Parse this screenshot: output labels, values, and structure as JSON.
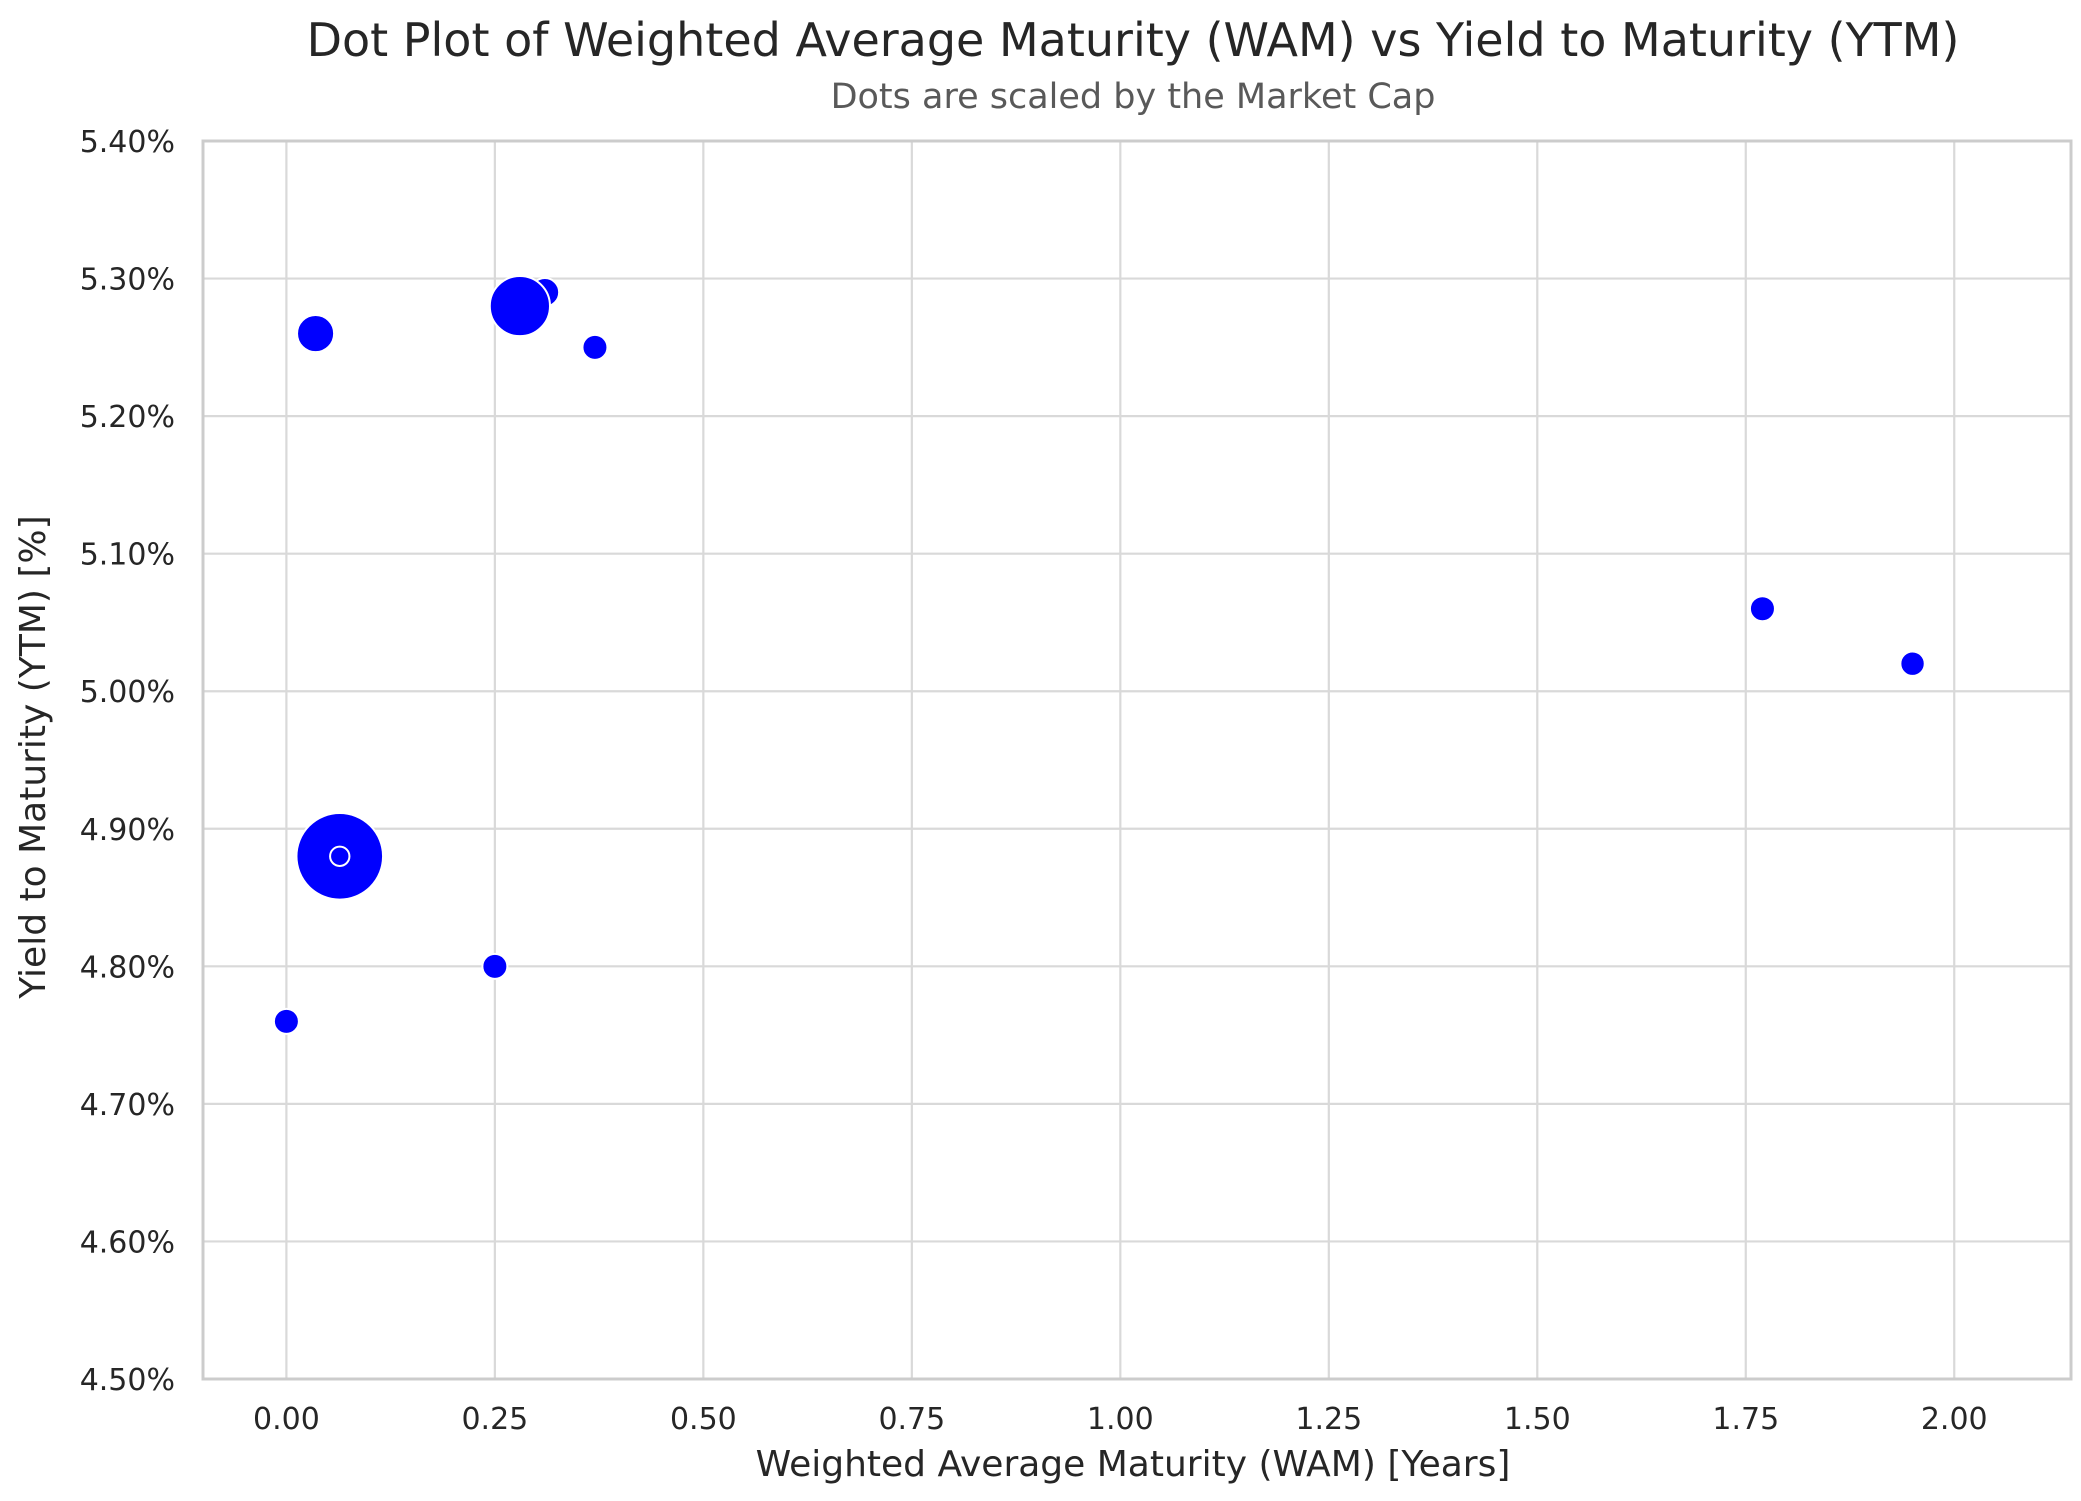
{
  "chart_data": {
    "type": "scatter",
    "title": "Dot Plot of Weighted Average Maturity (WAM) vs Yield to Maturity (YTM)",
    "subtitle": "Dots are scaled by the Market Cap",
    "xlabel": "Weighted Average Maturity (WAM) [Years]",
    "ylabel": "Yield to Maturity (YTM) [%]",
    "xlim": [
      -0.1,
      2.14
    ],
    "ylim": [
      4.5,
      5.4
    ],
    "xticks": [
      0.0,
      0.25,
      0.5,
      0.75,
      1.0,
      1.25,
      1.5,
      1.75,
      2.0
    ],
    "xtick_labels": [
      "0.00",
      "0.25",
      "0.50",
      "0.75",
      "1.00",
      "1.25",
      "1.50",
      "1.75",
      "2.00"
    ],
    "yticks": [
      4.5,
      4.6,
      4.7,
      4.8,
      4.9,
      5.0,
      5.1,
      5.2,
      5.3,
      5.4
    ],
    "ytick_labels": [
      "4.50%",
      "4.60%",
      "4.70%",
      "4.80%",
      "4.90%",
      "5.00%",
      "5.10%",
      "5.20%",
      "5.30%",
      "5.40%"
    ],
    "grid": true,
    "marker_color": "#0000ff",
    "marker_edge_color": "#ffffff",
    "size_encodes": "Market Cap (relative)",
    "points": [
      {
        "x": 0.0,
        "y": 4.76,
        "size": 1.0
      },
      {
        "x": 0.035,
        "y": 5.26,
        "size": 2.2
      },
      {
        "x": 0.064,
        "y": 4.88,
        "size": 12.0
      },
      {
        "x": 0.064,
        "y": 4.88,
        "size": 0.6
      },
      {
        "x": 0.25,
        "y": 4.8,
        "size": 1.0
      },
      {
        "x": 0.31,
        "y": 5.29,
        "size": 1.3
      },
      {
        "x": 0.28,
        "y": 5.28,
        "size": 5.8
      },
      {
        "x": 0.37,
        "y": 5.25,
        "size": 1.0
      },
      {
        "x": 1.77,
        "y": 5.06,
        "size": 1.0
      },
      {
        "x": 1.95,
        "y": 5.02,
        "size": 0.95
      }
    ]
  }
}
